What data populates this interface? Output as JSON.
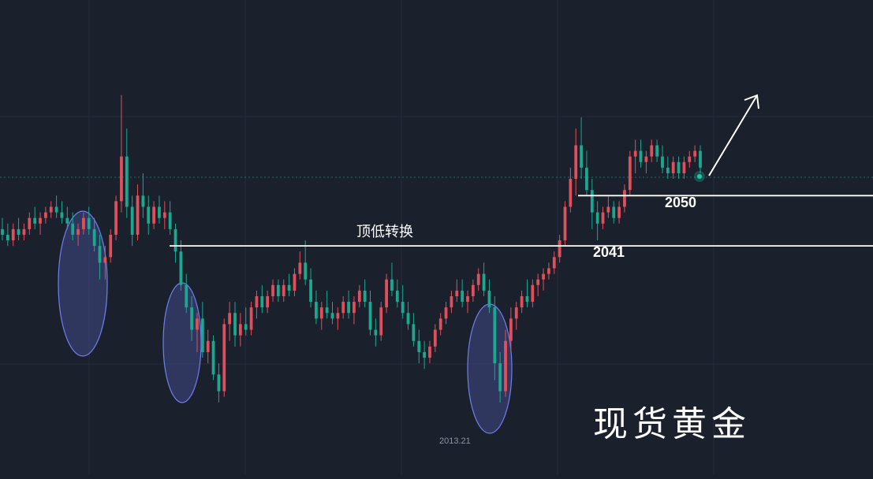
{
  "chart_data": {
    "type": "candlestick",
    "title": "现货黄金",
    "y_range": [
      2000,
      2085
    ],
    "grid": true,
    "colors": {
      "up": "#e0505a",
      "down": "#1aa88f",
      "background": "#1b202d",
      "grid": "#252c3a",
      "lines": "#ffffff",
      "ellipse_fill": "#3f4a86",
      "ellipse_stroke": "#6f7ff0"
    },
    "annotations": {
      "level_2041_label": "2041",
      "level_2050_label": "2050",
      "swap_label": "顶低转换",
      "low_label": "2013.21"
    },
    "levels": [
      {
        "name": "2041",
        "value": 2041
      },
      {
        "name": "2050",
        "value": 2050
      }
    ],
    "candles": [
      [
        2044,
        2046,
        2042,
        2043
      ],
      [
        2043,
        2045,
        2041,
        2042
      ],
      [
        2042,
        2045,
        2041,
        2044
      ],
      [
        2044,
        2046,
        2042,
        2043
      ],
      [
        2043,
        2045,
        2042,
        2044
      ],
      [
        2044,
        2047,
        2043,
        2046
      ],
      [
        2046,
        2048,
        2044,
        2045
      ],
      [
        2045,
        2047,
        2043,
        2046
      ],
      [
        2046,
        2048,
        2045,
        2047
      ],
      [
        2047,
        2049,
        2046,
        2048
      ],
      [
        2048,
        2050,
        2046,
        2047
      ],
      [
        2047,
        2049,
        2045,
        2046
      ],
      [
        2046,
        2048,
        2044,
        2045
      ],
      [
        2045,
        2047,
        2042,
        2043
      ],
      [
        2043,
        2045,
        2041,
        2044
      ],
      [
        2044,
        2047,
        2043,
        2046
      ],
      [
        2046,
        2048,
        2043,
        2044
      ],
      [
        2044,
        2046,
        2040,
        2041
      ],
      [
        2041,
        2043,
        2035,
        2038
      ],
      [
        2038,
        2041,
        2035,
        2039
      ],
      [
        2039,
        2044,
        2038,
        2043
      ],
      [
        2043,
        2050,
        2042,
        2049
      ],
      [
        2049,
        2068,
        2047,
        2057
      ],
      [
        2057,
        2062,
        2046,
        2048
      ],
      [
        2048,
        2050,
        2041,
        2043
      ],
      [
        2043,
        2052,
        2042,
        2050
      ],
      [
        2050,
        2054,
        2046,
        2048
      ],
      [
        2048,
        2050,
        2043,
        2045
      ],
      [
        2045,
        2049,
        2044,
        2048
      ],
      [
        2048,
        2050,
        2045,
        2046
      ],
      [
        2046,
        2049,
        2044,
        2047
      ],
      [
        2047,
        2049,
        2043,
        2044
      ],
      [
        2044,
        2045,
        2038,
        2040
      ],
      [
        2040,
        2042,
        2033,
        2034
      ],
      [
        2034,
        2036,
        2029,
        2030
      ],
      [
        2030,
        2032,
        2024,
        2026
      ],
      [
        2026,
        2029,
        2022,
        2028
      ],
      [
        2028,
        2031,
        2021,
        2022
      ],
      [
        2022,
        2026,
        2020,
        2024
      ],
      [
        2024,
        2025,
        2017,
        2018
      ],
      [
        2018,
        2020,
        2013,
        2015
      ],
      [
        2015,
        2028,
        2014,
        2027
      ],
      [
        2027,
        2031,
        2024,
        2029
      ],
      [
        2029,
        2031,
        2023,
        2025
      ],
      [
        2025,
        2029,
        2023,
        2027
      ],
      [
        2027,
        2030,
        2025,
        2026
      ],
      [
        2026,
        2031,
        2025,
        2030
      ],
      [
        2030,
        2033,
        2028,
        2032
      ],
      [
        2032,
        2034,
        2029,
        2030
      ],
      [
        2030,
        2033,
        2029,
        2032
      ],
      [
        2032,
        2035,
        2031,
        2034
      ],
      [
        2034,
        2035,
        2031,
        2032
      ],
      [
        2032,
        2035,
        2031,
        2034
      ],
      [
        2034,
        2036,
        2032,
        2033
      ],
      [
        2033,
        2037,
        2032,
        2036
      ],
      [
        2036,
        2040,
        2035,
        2038
      ],
      [
        2038,
        2042,
        2034,
        2035
      ],
      [
        2035,
        2037,
        2030,
        2031
      ],
      [
        2031,
        2033,
        2027,
        2028
      ],
      [
        2028,
        2031,
        2026,
        2030
      ],
      [
        2030,
        2033,
        2028,
        2029
      ],
      [
        2029,
        2031,
        2027,
        2028
      ],
      [
        2028,
        2030,
        2026,
        2029
      ],
      [
        2029,
        2032,
        2028,
        2031
      ],
      [
        2031,
        2033,
        2028,
        2029
      ],
      [
        2029,
        2032,
        2027,
        2031
      ],
      [
        2031,
        2034,
        2030,
        2033
      ],
      [
        2033,
        2035,
        2030,
        2031
      ],
      [
        2031,
        2033,
        2025,
        2026
      ],
      [
        2026,
        2028,
        2023,
        2025
      ],
      [
        2025,
        2031,
        2024,
        2030
      ],
      [
        2030,
        2036,
        2029,
        2035
      ],
      [
        2035,
        2038,
        2032,
        2033
      ],
      [
        2033,
        2035,
        2030,
        2031
      ],
      [
        2031,
        2034,
        2028,
        2029
      ],
      [
        2029,
        2031,
        2026,
        2027
      ],
      [
        2027,
        2029,
        2023,
        2024
      ],
      [
        2024,
        2026,
        2020,
        2022
      ],
      [
        2022,
        2024,
        2019,
        2021
      ],
      [
        2021,
        2024,
        2020,
        2023
      ],
      [
        2023,
        2027,
        2022,
        2026
      ],
      [
        2026,
        2029,
        2025,
        2028
      ],
      [
        2028,
        2031,
        2027,
        2030
      ],
      [
        2030,
        2033,
        2029,
        2032
      ],
      [
        2032,
        2035,
        2031,
        2033
      ],
      [
        2033,
        2035,
        2030,
        2031
      ],
      [
        2031,
        2033,
        2029,
        2032
      ],
      [
        2032,
        2035,
        2031,
        2034
      ],
      [
        2034,
        2037,
        2033,
        2036
      ],
      [
        2036,
        2038,
        2032,
        2033
      ],
      [
        2033,
        2035,
        2029,
        2030
      ],
      [
        2030,
        2032,
        2017,
        2020
      ],
      [
        2020,
        2022,
        2013,
        2015
      ],
      [
        2015,
        2026,
        2014,
        2024
      ],
      [
        2024,
        2030,
        2022,
        2028
      ],
      [
        2028,
        2031,
        2026,
        2030
      ],
      [
        2030,
        2033,
        2029,
        2032
      ],
      [
        2032,
        2035,
        2030,
        2031
      ],
      [
        2031,
        2035,
        2030,
        2034
      ],
      [
        2034,
        2036,
        2032,
        2035
      ],
      [
        2035,
        2037,
        2033,
        2036
      ],
      [
        2036,
        2038,
        2035,
        2037
      ],
      [
        2037,
        2040,
        2036,
        2039
      ],
      [
        2039,
        2043,
        2038,
        2042
      ],
      [
        2042,
        2049,
        2041,
        2048
      ],
      [
        2048,
        2055,
        2047,
        2053
      ],
      [
        2053,
        2062,
        2050,
        2059
      ],
      [
        2059,
        2064,
        2053,
        2055
      ],
      [
        2055,
        2058,
        2050,
        2051
      ],
      [
        2051,
        2053,
        2044,
        2047
      ],
      [
        2047,
        2049,
        2042,
        2045
      ],
      [
        2045,
        2048,
        2044,
        2047
      ],
      [
        2047,
        2050,
        2046,
        2048
      ],
      [
        2048,
        2049,
        2045,
        2046
      ],
      [
        2046,
        2049,
        2045,
        2048
      ],
      [
        2048,
        2052,
        2047,
        2051
      ],
      [
        2051,
        2058,
        2050,
        2057
      ],
      [
        2057,
        2060,
        2054,
        2058
      ],
      [
        2058,
        2060,
        2055,
        2056
      ],
      [
        2056,
        2058,
        2054,
        2057
      ],
      [
        2057,
        2060,
        2056,
        2059
      ],
      [
        2059,
        2060,
        2056,
        2057
      ],
      [
        2057,
        2059,
        2054,
        2055
      ],
      [
        2055,
        2057,
        2053,
        2054
      ],
      [
        2054,
        2057,
        2053,
        2056
      ],
      [
        2056,
        2057,
        2053,
        2054
      ],
      [
        2054,
        2057,
        2053,
        2056
      ],
      [
        2056,
        2058,
        2055,
        2057
      ],
      [
        2057,
        2059,
        2056,
        2058
      ],
      [
        2058,
        2059,
        2054,
        2055
      ]
    ]
  }
}
